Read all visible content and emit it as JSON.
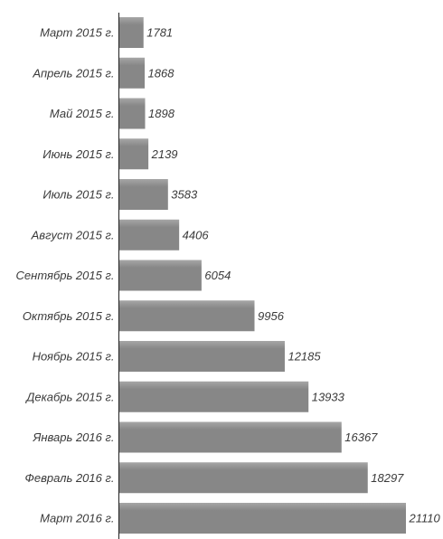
{
  "colors": {
    "bar": "#878787",
    "bar_highlight": "#a6a6a6",
    "text": "#3a3a3a",
    "axis": "#222222",
    "background": "#ffffff"
  },
  "chart_data": {
    "type": "bar",
    "orientation": "horizontal",
    "categories": [
      "Март 2015 г.",
      "Апрель 2015 г.",
      "Май 2015 г.",
      "Июнь 2015 г.",
      "Июль 2015 г.",
      "Август 2015 г.",
      "Сентябрь 2015 г.",
      "Октябрь 2015 г.",
      "Ноябрь 2015 г.",
      "Декабрь 2015 г.",
      "Январь 2016 г.",
      "Февраль 2016 г.",
      "Март 2016 г."
    ],
    "values": [
      1781,
      1868,
      1898,
      2139,
      3583,
      4406,
      6054,
      9956,
      12185,
      13933,
      16367,
      18297,
      21110
    ],
    "value_labels": [
      "1781",
      "1868",
      "1898",
      "2139",
      "3583",
      "4406",
      "6054",
      "9956",
      "12185",
      "13933",
      "16367",
      "18297",
      "21110"
    ],
    "xlim": [
      0,
      21110
    ],
    "grid": false,
    "legend": "none",
    "title": "",
    "xlabel": "",
    "ylabel": ""
  }
}
